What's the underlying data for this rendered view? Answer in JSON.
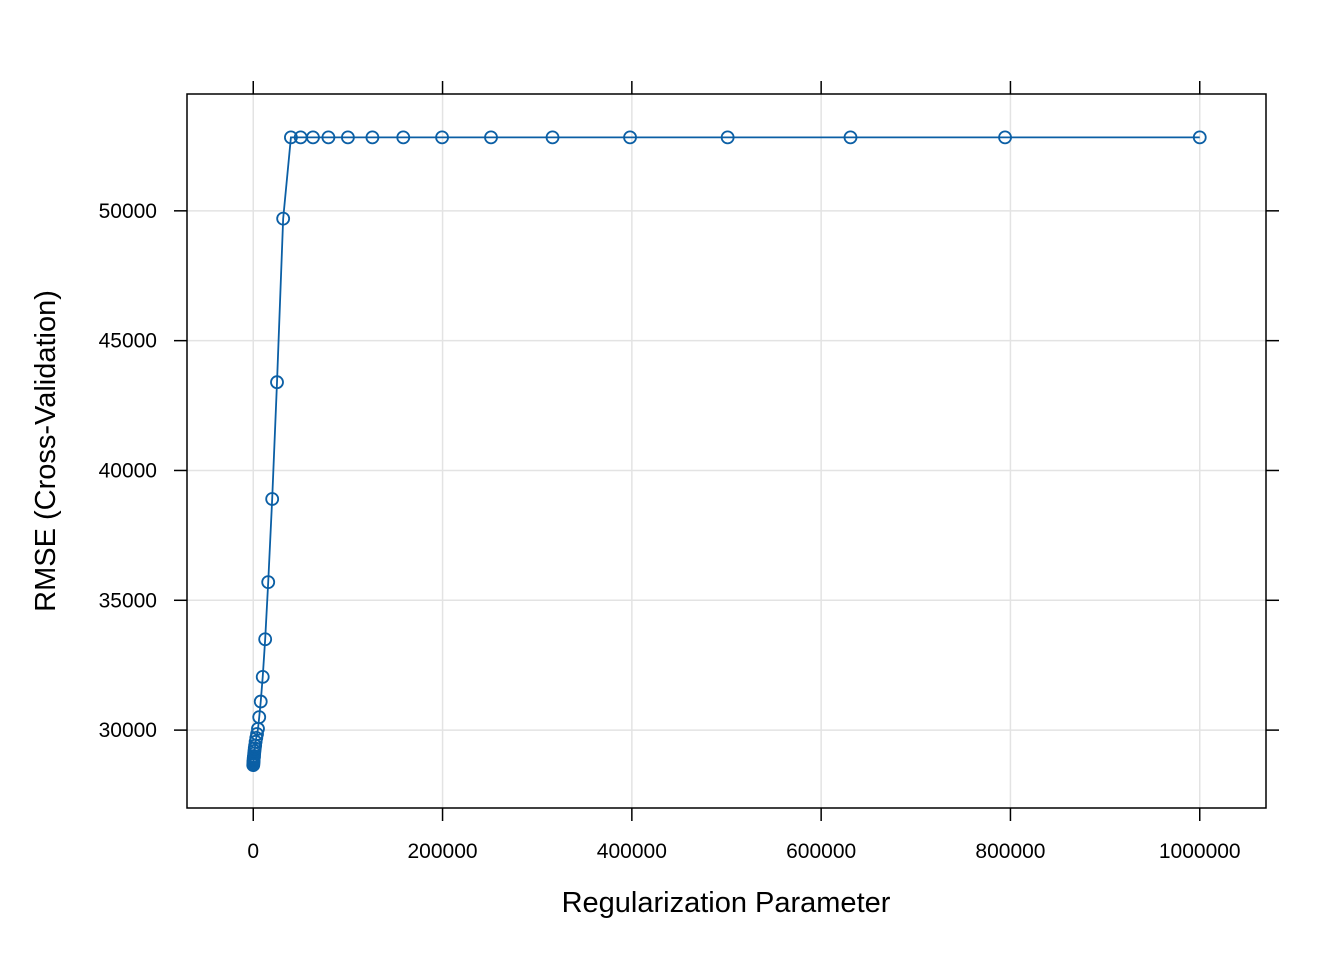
{
  "chart_data": {
    "type": "line",
    "title": "",
    "xlabel": "Regularization Parameter",
    "ylabel": "RMSE (Cross-Validation)",
    "xlim": [
      -70000,
      1070000
    ],
    "ylim": [
      27000,
      54500
    ],
    "x_ticks": [
      0,
      200000,
      400000,
      600000,
      800000,
      1000000
    ],
    "x_tick_labels": [
      "0",
      "200000",
      "400000",
      "600000",
      "800000",
      "1000000"
    ],
    "y_ticks": [
      30000,
      35000,
      40000,
      45000,
      50000
    ],
    "y_tick_labels": [
      "30000",
      "35000",
      "40000",
      "45000",
      "50000"
    ],
    "grid": true,
    "legend": "none",
    "colors": {
      "series": "#0b5fa5",
      "grid": "#e3e3e3",
      "frame": "#000000"
    },
    "series": [
      {
        "x": [
          0,
          100,
          200,
          300,
          400,
          500,
          600,
          800,
          1000,
          1300,
          1600,
          2000,
          2500,
          3200,
          4000,
          5000,
          6300,
          7900,
          10000,
          12600,
          15800,
          20000,
          25100,
          31600,
          39800,
          50100,
          63100,
          79400,
          100000,
          125900,
          158500,
          199500,
          251200,
          316200,
          398100,
          501200,
          631000,
          794300,
          1000000
        ],
        "y": [
          28650,
          28700,
          28750,
          28800,
          28850,
          28900,
          28950,
          29000,
          29100,
          29200,
          29300,
          29400,
          29550,
          29700,
          29850,
          30050,
          30500,
          31100,
          32050,
          33500,
          35700,
          38900,
          43400,
          49700,
          52830,
          52830,
          52830,
          52830,
          52830,
          52830,
          52830,
          52830,
          52830,
          52830,
          52830,
          52830,
          52830,
          52830,
          52830
        ]
      }
    ]
  }
}
